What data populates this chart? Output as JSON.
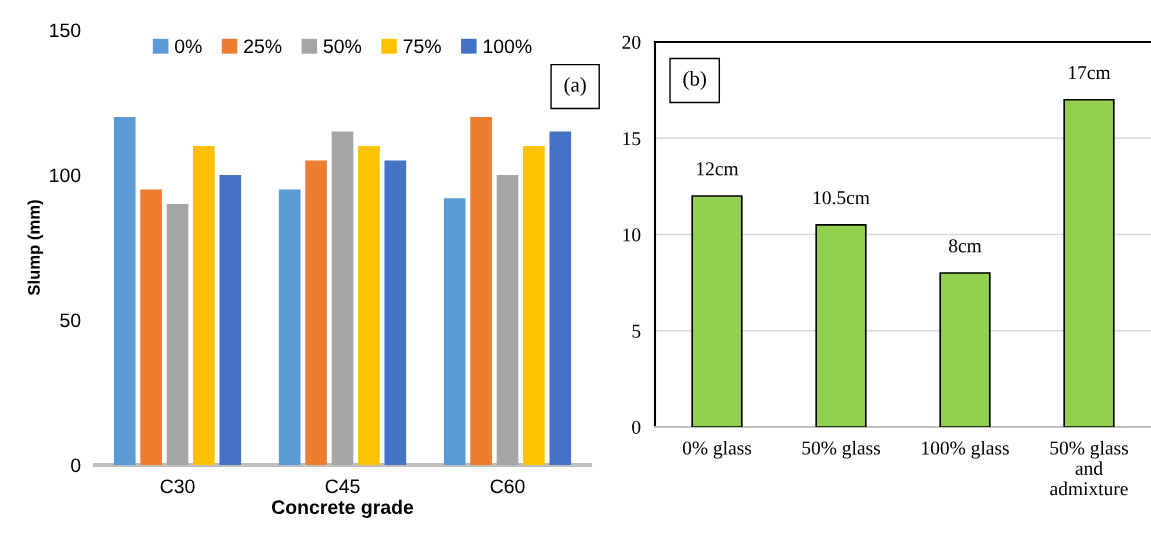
{
  "chart_data": [
    {
      "type": "bar",
      "xlabel": "Concrete grade",
      "ylabel": "Slump (mm)",
      "categories": [
        "C30",
        "C45",
        "C60"
      ],
      "series": [
        {
          "name": "0%",
          "color": "#5b9bd5",
          "values": [
            120,
            95,
            92
          ]
        },
        {
          "name": "25%",
          "color": "#ed7d31",
          "values": [
            95,
            105,
            120
          ]
        },
        {
          "name": "50%",
          "color": "#a5a5a5",
          "values": [
            90,
            115,
            100
          ]
        },
        {
          "name": "75%",
          "color": "#ffc000",
          "values": [
            110,
            110,
            110
          ]
        },
        {
          "name": "100%",
          "color": "#4472c4",
          "values": [
            100,
            105,
            115
          ]
        }
      ],
      "ylim": [
        0,
        150
      ],
      "yticks": [
        0,
        50,
        100,
        150
      ],
      "grid": false,
      "legend": "top",
      "annotations": [
        "(a)"
      ]
    },
    {
      "type": "bar",
      "categories": [
        "0% glass",
        "50% glass",
        "100% glass",
        "50% glass\nand\nadmixture"
      ],
      "values": [
        12,
        10.5,
        8,
        17
      ],
      "color": "#92d050",
      "value_labels": [
        "12cm",
        "10.5cm",
        "8cm",
        "17cm"
      ],
      "ylim": [
        0,
        20
      ],
      "yticks": [
        0,
        5,
        10,
        15,
        20
      ],
      "grid": "y",
      "annotations": [
        "(b)"
      ]
    }
  ]
}
